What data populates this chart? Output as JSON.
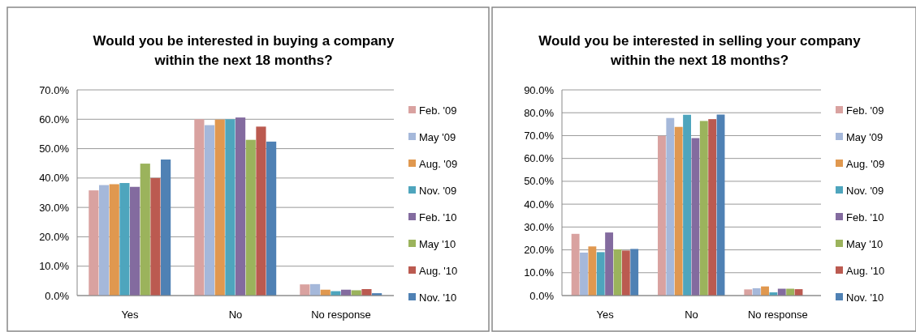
{
  "chart_data": [
    {
      "type": "bar",
      "title": "Would you be interested in buying a company within the next 18 months?",
      "categories": [
        "Yes",
        "No",
        "No response"
      ],
      "series": [
        {
          "name": "Feb. '09",
          "color": "#d9a2a0",
          "values": [
            35.8,
            60.0,
            3.8
          ]
        },
        {
          "name": "May '09",
          "color": "#a5b8da",
          "values": [
            37.6,
            58.0,
            3.9
          ]
        },
        {
          "name": "Aug. '09",
          "color": "#e0984f",
          "values": [
            37.9,
            59.9,
            2.0
          ]
        },
        {
          "name": "Nov. '09",
          "color": "#4ea5bd",
          "values": [
            38.3,
            60.0,
            1.5
          ]
        },
        {
          "name": "Feb. '10",
          "color": "#836b9f",
          "values": [
            37.0,
            60.6,
            2.0
          ]
        },
        {
          "name": "May '10",
          "color": "#9bb35c",
          "values": [
            44.9,
            53.0,
            1.8
          ]
        },
        {
          "name": "Aug. '10",
          "color": "#bb5a50",
          "values": [
            40.0,
            57.5,
            2.2
          ]
        },
        {
          "name": "Nov. '10",
          "color": "#4f81b4",
          "values": [
            46.3,
            52.4,
            0.8
          ]
        }
      ],
      "ylim": [
        0,
        70
      ],
      "yticks": [
        {
          "value": 0,
          "label": "0.0%"
        },
        {
          "value": 10,
          "label": "10.0%"
        },
        {
          "value": 20,
          "label": "20.0%"
        },
        {
          "value": 30,
          "label": "30.0%"
        },
        {
          "value": 40,
          "label": "40.0%"
        },
        {
          "value": 50,
          "label": "50.0%"
        },
        {
          "value": 60,
          "label": "60.0%"
        },
        {
          "value": 70,
          "label": "70.0%"
        }
      ],
      "grid": "y",
      "legend": "right"
    },
    {
      "type": "bar",
      "title": "Would you be interested in selling your company within the next 18 months?",
      "categories": [
        "Yes",
        "No",
        "No response"
      ],
      "series": [
        {
          "name": "Feb. '09",
          "color": "#d9a2a0",
          "values": [
            27.0,
            69.9,
            2.7
          ]
        },
        {
          "name": "May '09",
          "color": "#a5b8da",
          "values": [
            18.8,
            77.7,
            3.2
          ]
        },
        {
          "name": "Aug. '09",
          "color": "#e0984f",
          "values": [
            21.5,
            73.8,
            4.0
          ]
        },
        {
          "name": "Nov. '09",
          "color": "#4ea5bd",
          "values": [
            19.0,
            79.1,
            1.4
          ]
        },
        {
          "name": "Feb. '10",
          "color": "#836b9f",
          "values": [
            27.6,
            68.9,
            3.0
          ]
        },
        {
          "name": "May '10",
          "color": "#9bb35c",
          "values": [
            20.2,
            76.4,
            3.0
          ]
        },
        {
          "name": "Aug. '10",
          "color": "#bb5a50",
          "values": [
            19.7,
            77.2,
            2.8
          ]
        },
        {
          "name": "Nov. '10",
          "color": "#4f81b4",
          "values": [
            20.4,
            79.2,
            null
          ]
        }
      ],
      "ylim": [
        0,
        90
      ],
      "yticks": [
        {
          "value": 0,
          "label": "0.0%"
        },
        {
          "value": 10,
          "label": "10.0%"
        },
        {
          "value": 20,
          "label": "20.0%"
        },
        {
          "value": 30,
          "label": "30.0%"
        },
        {
          "value": 40,
          "label": "40.0%"
        },
        {
          "value": 50,
          "label": "50.0%"
        },
        {
          "value": 60,
          "label": "60.0%"
        },
        {
          "value": 70,
          "label": "70.0%"
        },
        {
          "value": 80,
          "label": "80.0%"
        },
        {
          "value": 90,
          "label": "90.0%"
        }
      ],
      "grid": "y",
      "legend": "right"
    }
  ]
}
